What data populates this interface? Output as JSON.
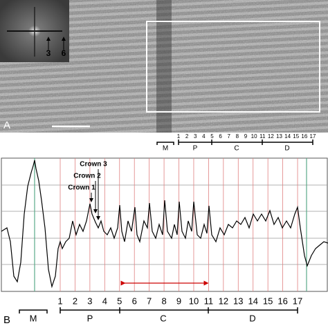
{
  "panel_a": {
    "label": "A",
    "fft_labels": [
      "3",
      "6"
    ],
    "stripe_numbers": [
      "1",
      "2",
      "3",
      "4",
      "5",
      "6",
      "7",
      "8",
      "9",
      "10",
      "11",
      "12",
      "13",
      "14",
      "15",
      "16",
      "17"
    ],
    "regions": [
      "M",
      "P",
      "C",
      "D"
    ]
  },
  "panel_b": {
    "label": "B",
    "annotations": [
      "Crown 3",
      "Crown 2",
      "Crown 1"
    ],
    "stripe_numbers": [
      "1",
      "2",
      "3",
      "4",
      "5",
      "6",
      "7",
      "8",
      "9",
      "10",
      "11",
      "12",
      "13",
      "14",
      "15",
      "16",
      "17"
    ],
    "regions": [
      "M",
      "P",
      "C",
      "D"
    ]
  }
}
